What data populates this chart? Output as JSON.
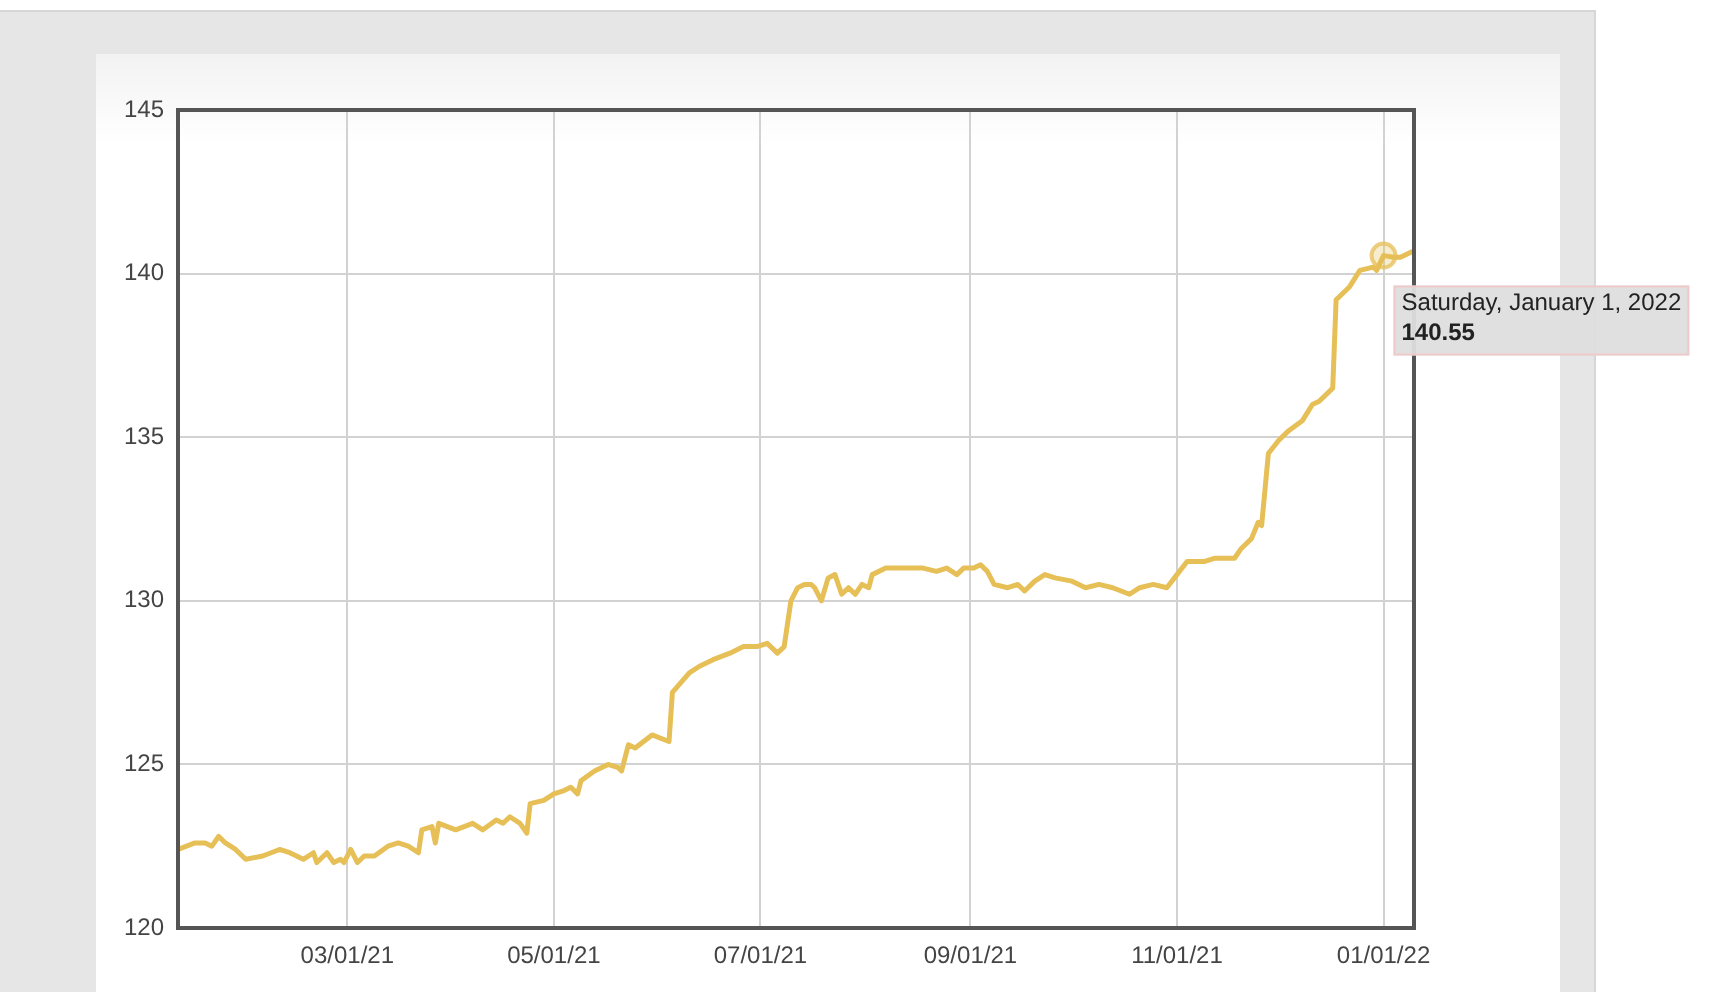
{
  "chart_data": {
    "type": "line",
    "x": [
      "2021-01-10",
      "2021-01-15",
      "2021-01-18",
      "2021-01-20",
      "2021-01-22",
      "2021-01-24",
      "2021-01-27",
      "2021-01-30",
      "2021-02-04",
      "2021-02-09",
      "2021-02-12",
      "2021-02-16",
      "2021-02-19",
      "2021-02-20",
      "2021-02-23",
      "2021-02-25",
      "2021-02-27",
      "2021-02-28",
      "2021-03-02",
      "2021-03-04",
      "2021-03-06",
      "2021-03-09",
      "2021-03-13",
      "2021-03-16",
      "2021-03-19",
      "2021-03-22",
      "2021-03-23",
      "2021-03-26",
      "2021-03-27",
      "2021-03-28",
      "2021-04-02",
      "2021-04-07",
      "2021-04-10",
      "2021-04-14",
      "2021-04-16",
      "2021-04-18",
      "2021-04-21",
      "2021-04-23",
      "2021-04-24",
      "2021-04-28",
      "2021-05-01",
      "2021-05-04",
      "2021-05-06",
      "2021-05-08",
      "2021-05-09",
      "2021-05-13",
      "2021-05-17",
      "2021-05-20",
      "2021-05-21",
      "2021-05-23",
      "2021-05-25",
      "2021-05-30",
      "2021-06-04",
      "2021-06-05",
      "2021-06-10",
      "2021-06-13",
      "2021-06-17",
      "2021-06-22",
      "2021-06-26",
      "2021-06-30",
      "2021-07-03",
      "2021-07-06",
      "2021-07-08",
      "2021-07-10",
      "2021-07-12",
      "2021-07-14",
      "2021-07-16",
      "2021-07-17",
      "2021-07-19",
      "2021-07-21",
      "2021-07-23",
      "2021-07-25",
      "2021-07-27",
      "2021-07-29",
      "2021-07-31",
      "2021-08-02",
      "2021-08-03",
      "2021-08-07",
      "2021-08-13",
      "2021-08-18",
      "2021-08-22",
      "2021-08-25",
      "2021-08-28",
      "2021-08-30",
      "2021-09-02",
      "2021-09-04",
      "2021-09-06",
      "2021-09-08",
      "2021-09-12",
      "2021-09-15",
      "2021-09-17",
      "2021-09-20",
      "2021-09-23",
      "2021-09-26",
      "2021-10-01",
      "2021-10-05",
      "2021-10-09",
      "2021-10-13",
      "2021-10-18",
      "2021-10-21",
      "2021-10-25",
      "2021-10-29",
      "2021-11-01",
      "2021-11-04",
      "2021-11-09",
      "2021-11-12",
      "2021-11-18",
      "2021-11-20",
      "2021-11-23",
      "2021-11-25",
      "2021-11-26",
      "2021-11-28",
      "2021-12-01",
      "2021-12-04",
      "2021-12-08",
      "2021-12-11",
      "2021-12-13",
      "2021-12-17",
      "2021-12-18",
      "2021-12-22",
      "2021-12-25",
      "2021-12-29",
      "2021-12-30",
      "2022-01-01",
      "2022-01-04",
      "2022-01-06",
      "2022-01-10"
    ],
    "values": [
      122.4,
      122.6,
      122.6,
      122.5,
      122.8,
      122.6,
      122.4,
      122.1,
      122.2,
      122.4,
      122.3,
      122.1,
      122.3,
      122.0,
      122.3,
      122.0,
      122.1,
      122.0,
      122.4,
      122.0,
      122.2,
      122.2,
      122.5,
      122.6,
      122.5,
      122.3,
      123.0,
      123.1,
      122.6,
      123.2,
      123.0,
      123.2,
      123.0,
      123.3,
      123.2,
      123.4,
      123.2,
      122.9,
      123.8,
      123.9,
      124.1,
      124.2,
      124.3,
      124.1,
      124.5,
      124.8,
      125.0,
      124.9,
      124.8,
      125.6,
      125.5,
      125.9,
      125.7,
      127.2,
      127.8,
      128.0,
      128.2,
      128.4,
      128.6,
      128.6,
      128.7,
      128.4,
      128.6,
      130.0,
      130.4,
      130.5,
      130.5,
      130.4,
      130.0,
      130.7,
      130.8,
      130.2,
      130.4,
      130.2,
      130.5,
      130.4,
      130.8,
      131.0,
      131.0,
      131.0,
      130.9,
      131.0,
      130.8,
      131.0,
      131.0,
      131.1,
      130.9,
      130.5,
      130.4,
      130.5,
      130.3,
      130.6,
      130.8,
      130.7,
      130.6,
      130.4,
      130.5,
      130.4,
      130.2,
      130.4,
      130.5,
      130.4,
      130.8,
      131.2,
      131.2,
      131.3,
      131.3,
      131.6,
      131.9,
      132.4,
      132.3,
      134.5,
      134.9,
      135.2,
      135.5,
      136.0,
      136.1,
      136.5,
      139.2,
      139.6,
      140.1,
      140.2,
      140.1,
      140.55,
      140.5,
      140.5,
      140.7
    ],
    "color": "#e6bf57",
    "xlim": [
      "2021-01-10",
      "2022-01-10"
    ],
    "xticks": [
      {
        "value": "2021-03-01",
        "label": "03/01/21"
      },
      {
        "value": "2021-05-01",
        "label": "05/01/21"
      },
      {
        "value": "2021-07-01",
        "label": "07/01/21"
      },
      {
        "value": "2021-09-01",
        "label": "09/01/21"
      },
      {
        "value": "2021-11-01",
        "label": "11/01/21"
      },
      {
        "value": "2022-01-01",
        "label": "01/01/22"
      }
    ],
    "ylim": [
      120,
      145
    ],
    "yticks": [
      120,
      125,
      130,
      135,
      140,
      145
    ],
    "grid": true,
    "legend": false,
    "marker": "none",
    "annotations": [
      {
        "text": "Saturday, January 1, 2022\n140.55",
        "x": "2022-01-01",
        "y": 140.55
      }
    ]
  }
}
